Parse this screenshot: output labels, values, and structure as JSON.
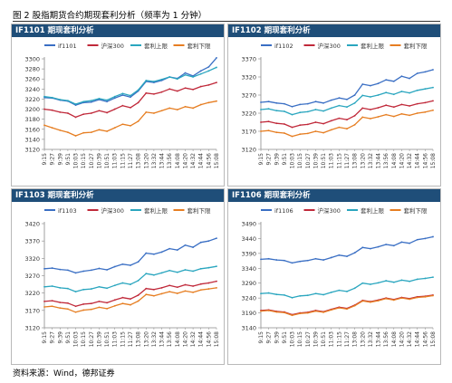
{
  "figure": {
    "title": "图 2 股指期货合约期现套利分析（频率为 1 分钟）",
    "source": "资料来源：Wind，德邦证券"
  },
  "colors": {
    "header_bg": "#1f4e79",
    "futures": "#3a6fc4",
    "spot": "#c0293a",
    "upper": "#2aa6bf",
    "lower": "#e67e22"
  },
  "chart_data": [
    {
      "type": "line",
      "title": "IF1101 期现套利分析",
      "x": [
        "9:15",
        "9:27",
        "9:39",
        "9:51",
        "10:03",
        "10:15",
        "10:27",
        "10:39",
        "10:51",
        "11:03",
        "11:15",
        "11:27",
        "13:08",
        "13:20",
        "13:32",
        "13:44",
        "13:56",
        "14:08",
        "14:20",
        "14:32",
        "14:44",
        "14:56",
        "15:08"
      ],
      "ylim": [
        3120,
        3300
      ],
      "yticks": [
        3120,
        3140,
        3160,
        3180,
        3200,
        3220,
        3240,
        3260,
        3280,
        3300
      ],
      "legend_position": "top",
      "series": [
        {
          "name": "if1101",
          "color": "#3a6fc4",
          "values": [
            3223,
            3222,
            3218,
            3216,
            3208,
            3213,
            3214,
            3219,
            3215,
            3222,
            3228,
            3224,
            3236,
            3255,
            3253,
            3257,
            3264,
            3261,
            3272,
            3266,
            3276,
            3284,
            3302
          ]
        },
        {
          "name": "沪深300",
          "color": "#c0293a",
          "values": [
            3200,
            3198,
            3194,
            3192,
            3184,
            3190,
            3192,
            3197,
            3193,
            3200,
            3207,
            3203,
            3213,
            3232,
            3230,
            3234,
            3240,
            3236,
            3242,
            3239,
            3245,
            3248,
            3253
          ]
        },
        {
          "name": "套利上限",
          "color": "#2aa6bf",
          "values": [
            3225,
            3223,
            3219,
            3217,
            3210,
            3215,
            3217,
            3221,
            3218,
            3225,
            3231,
            3227,
            3238,
            3257,
            3255,
            3259,
            3264,
            3260,
            3268,
            3264,
            3270,
            3276,
            3283
          ]
        },
        {
          "name": "套利下限",
          "color": "#e67e22",
          "values": [
            3168,
            3163,
            3158,
            3154,
            3147,
            3153,
            3154,
            3159,
            3156,
            3163,
            3170,
            3167,
            3176,
            3194,
            3192,
            3197,
            3202,
            3199,
            3205,
            3202,
            3209,
            3213,
            3216
          ]
        }
      ]
    },
    {
      "type": "line",
      "title": "IF1102 期现套利分析",
      "x": [
        "9:15",
        "9:27",
        "9:39",
        "9:51",
        "10:03",
        "10:15",
        "10:27",
        "10:39",
        "10:51",
        "11:03",
        "11:15",
        "11:27",
        "13:08",
        "13:20",
        "13:32",
        "13:44",
        "13:56",
        "14:08",
        "14:20",
        "14:32",
        "14:44",
        "14:56",
        "15:08"
      ],
      "ylim": [
        3120,
        3370
      ],
      "yticks": [
        3120,
        3170,
        3220,
        3270,
        3320,
        3370
      ],
      "legend_position": "top",
      "series": [
        {
          "name": "if1102",
          "color": "#3a6fc4",
          "values": [
            3250,
            3252,
            3248,
            3246,
            3238,
            3244,
            3246,
            3252,
            3248,
            3256,
            3262,
            3258,
            3270,
            3300,
            3296,
            3302,
            3312,
            3308,
            3322,
            3316,
            3330,
            3334,
            3340
          ]
        },
        {
          "name": "沪深300",
          "color": "#c0293a",
          "values": [
            3195,
            3197,
            3192,
            3190,
            3181,
            3187,
            3189,
            3195,
            3191,
            3199,
            3206,
            3202,
            3213,
            3234,
            3230,
            3235,
            3242,
            3237,
            3244,
            3240,
            3246,
            3249,
            3254
          ]
        },
        {
          "name": "套利上限",
          "color": "#2aa6bf",
          "values": [
            3230,
            3232,
            3227,
            3225,
            3216,
            3222,
            3224,
            3230,
            3226,
            3234,
            3241,
            3237,
            3248,
            3269,
            3265,
            3270,
            3277,
            3272,
            3280,
            3276,
            3283,
            3287,
            3291
          ]
        },
        {
          "name": "套利下限",
          "color": "#e67e22",
          "values": [
            3170,
            3172,
            3167,
            3165,
            3156,
            3162,
            3164,
            3170,
            3166,
            3174,
            3181,
            3177,
            3188,
            3209,
            3205,
            3210,
            3216,
            3211,
            3218,
            3214,
            3220,
            3223,
            3228
          ]
        }
      ]
    },
    {
      "type": "line",
      "title": "IF1103 期现套利分析",
      "x": [
        "9:15",
        "9:27",
        "9:39",
        "9:51",
        "10:03",
        "10:15",
        "10:27",
        "10:39",
        "10:51",
        "11:03",
        "11:15",
        "11:27",
        "13:08",
        "13:20",
        "13:32",
        "13:44",
        "13:56",
        "14:08",
        "14:20",
        "14:32",
        "14:44",
        "14:56",
        "15:08"
      ],
      "ylim": [
        3120,
        3420
      ],
      "yticks": [
        3120,
        3170,
        3220,
        3270,
        3320,
        3370,
        3420
      ],
      "legend_position": "top",
      "series": [
        {
          "name": "if1103",
          "color": "#3a6fc4",
          "values": [
            3290,
            3292,
            3288,
            3286,
            3278,
            3283,
            3286,
            3291,
            3287,
            3296,
            3303,
            3300,
            3310,
            3335,
            3332,
            3338,
            3348,
            3344,
            3358,
            3352,
            3366,
            3370,
            3378
          ]
        },
        {
          "name": "沪深300",
          "color": "#c0293a",
          "values": [
            3196,
            3198,
            3193,
            3191,
            3182,
            3188,
            3190,
            3196,
            3192,
            3200,
            3207,
            3203,
            3214,
            3233,
            3230,
            3235,
            3242,
            3237,
            3244,
            3240,
            3246,
            3249,
            3254
          ]
        },
        {
          "name": "套利上限",
          "color": "#2aa6bf",
          "values": [
            3238,
            3240,
            3235,
            3233,
            3224,
            3230,
            3232,
            3238,
            3234,
            3242,
            3249,
            3245,
            3256,
            3276,
            3272,
            3278,
            3285,
            3280,
            3287,
            3283,
            3290,
            3293,
            3297
          ]
        },
        {
          "name": "套利下限",
          "color": "#e67e22",
          "values": [
            3180,
            3182,
            3177,
            3174,
            3165,
            3171,
            3173,
            3179,
            3175,
            3183,
            3190,
            3186,
            3197,
            3216,
            3212,
            3218,
            3224,
            3219,
            3226,
            3222,
            3229,
            3232,
            3235
          ]
        }
      ]
    },
    {
      "type": "line",
      "title": "IF1106 期现套利分析",
      "x": [
        "9:15",
        "9:27",
        "9:39",
        "9:51",
        "10:03",
        "10:15",
        "10:27",
        "10:39",
        "10:51",
        "11:03",
        "11:15",
        "11:27",
        "13:08",
        "13:20",
        "13:32",
        "13:44",
        "13:56",
        "14:08",
        "14:20",
        "14:32",
        "14:44",
        "14:56",
        "15:08"
      ],
      "ylim": [
        3140,
        3490
      ],
      "yticks": [
        3140,
        3190,
        3240,
        3290,
        3340,
        3390,
        3440,
        3490
      ],
      "legend_position": "top",
      "series": [
        {
          "name": "if1106",
          "color": "#3a6fc4",
          "values": [
            3370,
            3372,
            3368,
            3366,
            3358,
            3363,
            3366,
            3372,
            3368,
            3376,
            3384,
            3380,
            3392,
            3410,
            3406,
            3412,
            3420,
            3416,
            3428,
            3424,
            3436,
            3440,
            3446
          ]
        },
        {
          "name": "沪深300",
          "color": "#c0293a",
          "values": [
            3198,
            3200,
            3195,
            3193,
            3184,
            3190,
            3192,
            3198,
            3194,
            3202,
            3209,
            3205,
            3216,
            3232,
            3228,
            3233,
            3240,
            3235,
            3242,
            3238,
            3244,
            3246,
            3250
          ]
        },
        {
          "name": "套利上限",
          "color": "#2aa6bf",
          "values": [
            3255,
            3257,
            3252,
            3250,
            3241,
            3247,
            3249,
            3255,
            3251,
            3259,
            3266,
            3262,
            3273,
            3290,
            3286,
            3291,
            3298,
            3293,
            3300,
            3296,
            3303,
            3306,
            3310
          ]
        },
        {
          "name": "套利下限",
          "color": "#e67e22",
          "values": [
            3196,
            3198,
            3193,
            3191,
            3182,
            3188,
            3190,
            3196,
            3192,
            3200,
            3207,
            3203,
            3214,
            3230,
            3226,
            3231,
            3238,
            3233,
            3240,
            3236,
            3242,
            3244,
            3248
          ]
        }
      ]
    }
  ]
}
